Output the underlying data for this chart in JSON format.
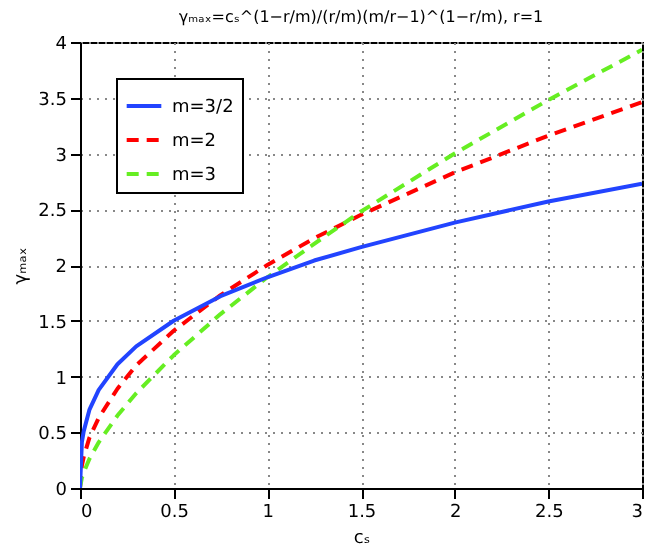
{
  "chart_data": {
    "type": "line",
    "title": "γₘₐₓ=cₛ^(1−r/m)/(r/m)(m/r−1)^(1−r/m), r=1",
    "xlabel": "cₛ",
    "ylabel": "γₘₐₓ",
    "x": [
      0,
      0.01,
      0.02,
      0.05,
      0.1,
      0.2,
      0.3,
      0.5,
      0.75,
      1,
      1.25,
      1.5,
      2,
      2.5,
      3
    ],
    "series": [
      {
        "name": "m=3/2",
        "color": "#2244ff",
        "line_style": "solid",
        "values": [
          0,
          0.41,
          0.51,
          0.7,
          0.88,
          1.11,
          1.27,
          1.5,
          1.72,
          1.89,
          2.04,
          2.16,
          2.38,
          2.57,
          2.73
        ]
      },
      {
        "name": "m=2",
        "color": "#ff0000",
        "line_style": "dashed",
        "values": [
          0,
          0.2,
          0.28,
          0.45,
          0.63,
          0.89,
          1.1,
          1.41,
          1.73,
          2.0,
          2.24,
          2.45,
          2.83,
          3.16,
          3.46
        ]
      },
      {
        "name": "m=3",
        "color": "#66ee22",
        "line_style": "dashed",
        "values": [
          0,
          0.09,
          0.14,
          0.26,
          0.41,
          0.65,
          0.85,
          1.19,
          1.56,
          1.89,
          2.19,
          2.48,
          3.0,
          3.48,
          3.93
        ]
      }
    ],
    "xlim": [
      0,
      3
    ],
    "xticks": [
      0,
      0.5,
      1,
      1.5,
      2,
      2.5,
      3
    ],
    "ylim": [
      0,
      4
    ],
    "yticks": [
      0,
      0.5,
      1,
      1.5,
      2,
      2.5,
      3,
      3.5,
      4
    ],
    "grid": true,
    "legend": "top left",
    "marker": "none"
  }
}
